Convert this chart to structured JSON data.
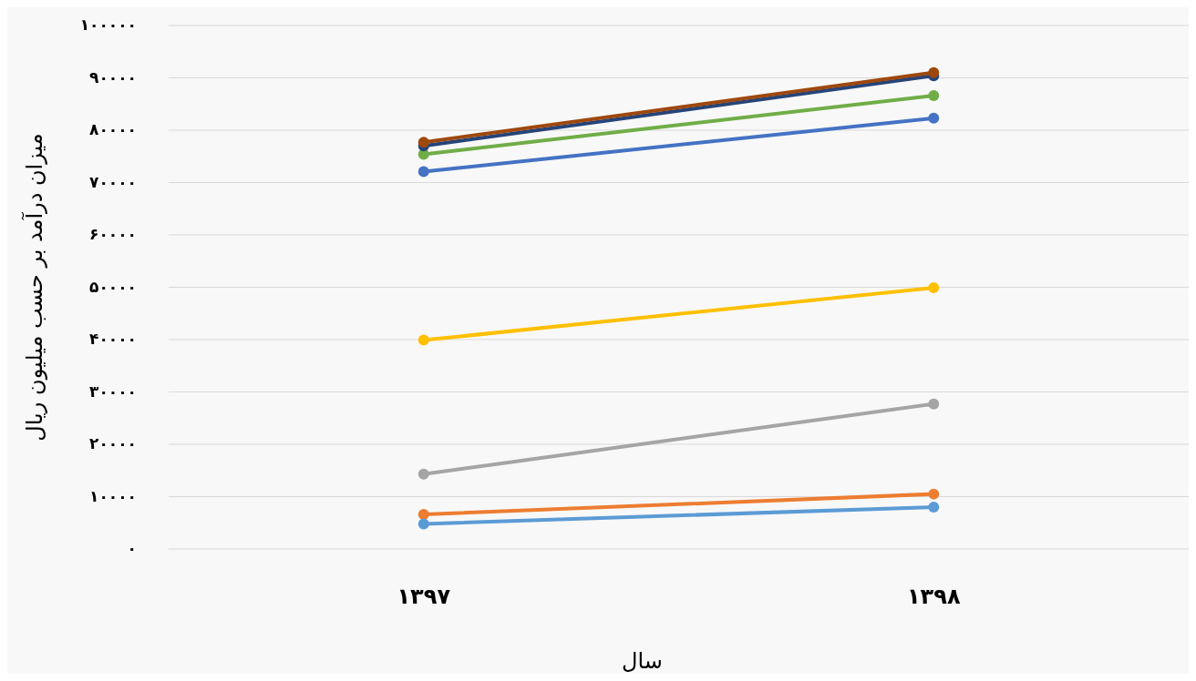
{
  "chart_data": {
    "type": "line",
    "xlabel": "سال",
    "ylabel": "میزان درآمد بر حسب میلیون ریال",
    "categories": [
      "۱۳۹۷",
      "۱۳۹۸"
    ],
    "series": [
      {
        "color": "#4472c4",
        "values": [
          72100,
          82300
        ]
      },
      {
        "color": "#ed7d31",
        "values": [
          6600,
          10500
        ]
      },
      {
        "color": "#a5a5a5",
        "values": [
          14300,
          27700
        ]
      },
      {
        "color": "#ffc000",
        "values": [
          39900,
          49900
        ]
      },
      {
        "color": "#5b9bd5",
        "values": [
          4800,
          8000
        ]
      },
      {
        "color": "#70ad47",
        "values": [
          75400,
          86600
        ]
      },
      {
        "color": "#264478",
        "values": [
          77000,
          90400
        ]
      },
      {
        "color": "#9e480e",
        "values": [
          77700,
          91000
        ]
      }
    ],
    "ylim": [
      0,
      100000
    ],
    "yticks": [
      {
        "value": 0,
        "label": "۰"
      },
      {
        "value": 10000,
        "label": "۱۰۰۰۰"
      },
      {
        "value": 20000,
        "label": "۲۰۰۰۰"
      },
      {
        "value": 30000,
        "label": "۳۰۰۰۰"
      },
      {
        "value": 40000,
        "label": "۴۰۰۰۰"
      },
      {
        "value": 50000,
        "label": "۵۰۰۰۰"
      },
      {
        "value": 60000,
        "label": "۶۰۰۰۰"
      },
      {
        "value": 70000,
        "label": "۷۰۰۰۰"
      },
      {
        "value": 80000,
        "label": "۸۰۰۰۰"
      },
      {
        "value": 90000,
        "label": "۹۰۰۰۰"
      },
      {
        "value": 100000,
        "label": "۱۰۰۰۰۰"
      }
    ],
    "grid": "y",
    "marker": "circle",
    "line_style": "solid"
  }
}
